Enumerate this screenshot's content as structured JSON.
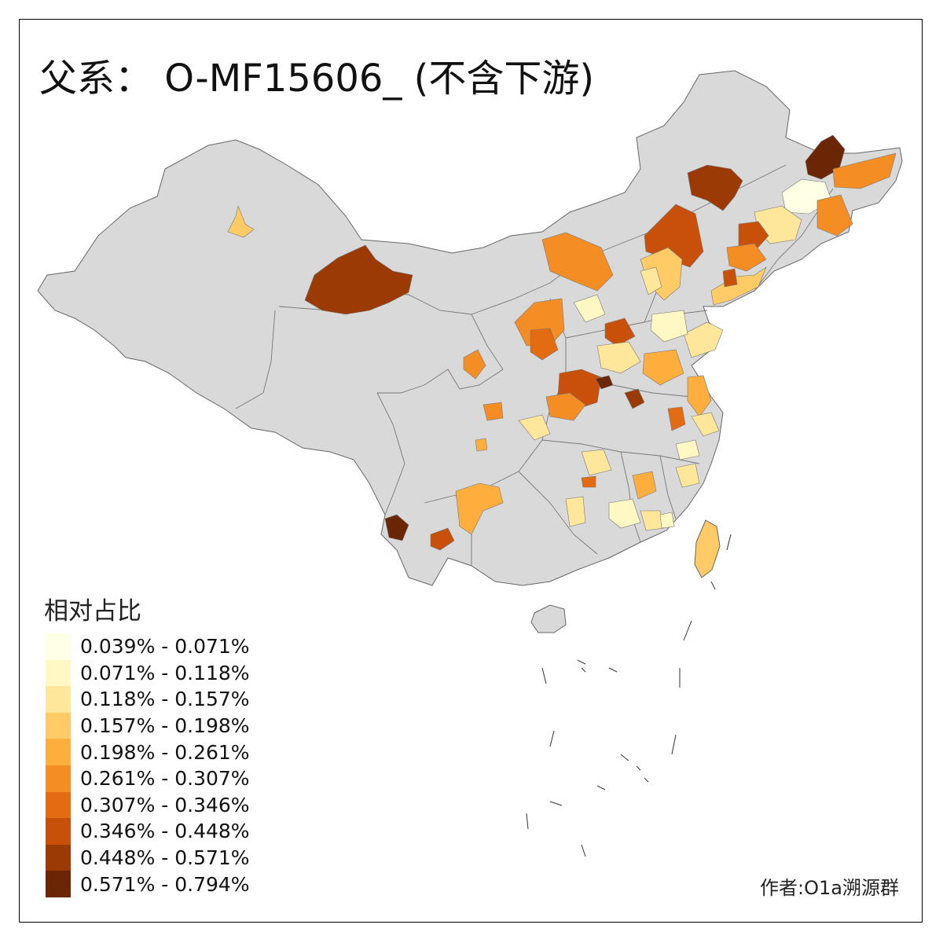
{
  "map": {
    "title": "父系： O-MF15606_ (不含下游)",
    "credit": "作者:O1a溯源群",
    "base_color": "#d9d9d9",
    "border_color": "#666666"
  },
  "legend": {
    "title": "相对占比",
    "classes": [
      {
        "label": "0.039% - 0.071%",
        "color": "#ffffe5"
      },
      {
        "label": "0.071% - 0.118%",
        "color": "#fff7c4"
      },
      {
        "label": "0.118% - 0.157%",
        "color": "#fee69a"
      },
      {
        "label": "0.157% - 0.198%",
        "color": "#fecb67"
      },
      {
        "label": "0.198% - 0.261%",
        "color": "#fdae3d"
      },
      {
        "label": "0.261% - 0.307%",
        "color": "#f58d25"
      },
      {
        "label": "0.307% - 0.346%",
        "color": "#e36c12"
      },
      {
        "label": "0.346% - 0.448%",
        "color": "#c8500a"
      },
      {
        "label": "0.448% - 0.571%",
        "color": "#9c3a06"
      },
      {
        "label": "0.571% - 0.794%",
        "color": "#6b2606"
      }
    ]
  }
}
